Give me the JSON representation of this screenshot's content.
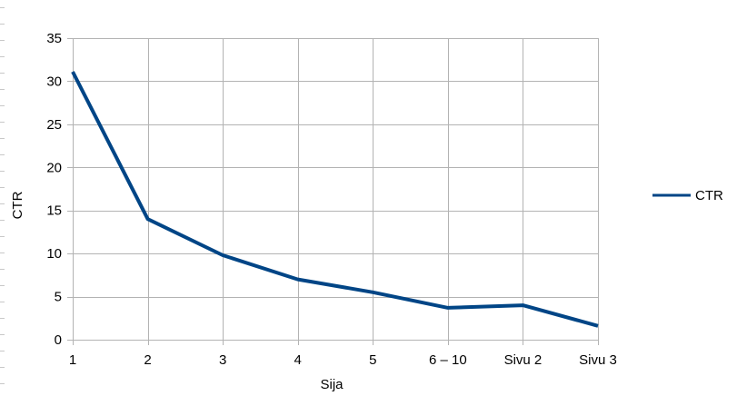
{
  "chart_data": {
    "type": "line",
    "title": "",
    "xlabel": "Sija",
    "ylabel": "CTR",
    "categories": [
      "1",
      "2",
      "3",
      "4",
      "5",
      "6 – 10",
      "Sivu 2",
      "Sivu 3"
    ],
    "series": [
      {
        "name": "CTR",
        "values": [
          31.1,
          14.0,
          9.8,
          7.0,
          5.5,
          3.7,
          4.0,
          1.6
        ],
        "color": "#004586"
      }
    ],
    "ylim": [
      0,
      35
    ],
    "yticks": [
      "0",
      "5",
      "10",
      "15",
      "20",
      "25",
      "30",
      "35"
    ],
    "grid": true,
    "legend": "right"
  }
}
